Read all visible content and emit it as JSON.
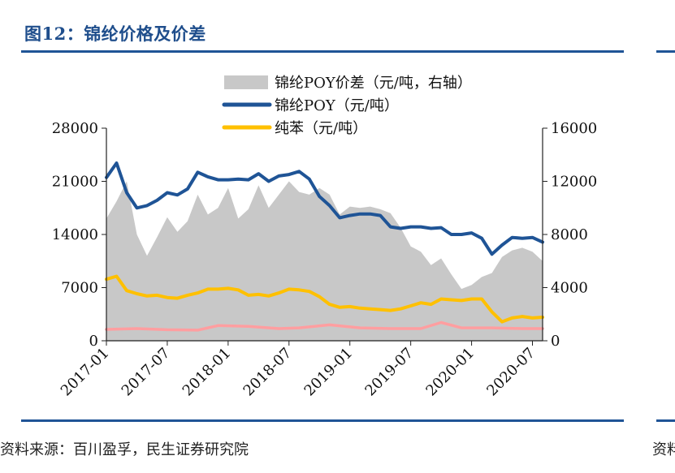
{
  "figure": {
    "title": "图12：锦纶价格及价差",
    "source": "资料来源：百川盈孚，民生证券研究院",
    "source_fragment": "资料"
  },
  "chart_data": {
    "type": "line",
    "x_start": "2017-01",
    "x_end": "2020-08",
    "x_tick_labels": [
      "2017-01",
      "2017-07",
      "2018-01",
      "2018-07",
      "2019-01",
      "2019-07",
      "2020-01",
      "2020-07"
    ],
    "y_left": {
      "lim": [
        0,
        28000
      ],
      "ticks": [
        0,
        7000,
        14000,
        21000,
        28000
      ]
    },
    "y_right": {
      "lim": [
        0,
        16000
      ],
      "ticks": [
        0,
        4000,
        8000,
        12000,
        16000
      ]
    },
    "legend_position": "top-center",
    "series": [
      {
        "name": "锦纶POY价差（元/吨，右轴）",
        "kind": "area",
        "axis": "right",
        "color": "#c8c8c8",
        "x": [
          "2017-01",
          "2017-02",
          "2017-03",
          "2017-04",
          "2017-05",
          "2017-06",
          "2017-07",
          "2017-08",
          "2017-09",
          "2017-10",
          "2017-11",
          "2017-12",
          "2018-01",
          "2018-02",
          "2018-03",
          "2018-04",
          "2018-05",
          "2018-06",
          "2018-07",
          "2018-08",
          "2018-09",
          "2018-10",
          "2018-11",
          "2018-12",
          "2019-01",
          "2019-02",
          "2019-03",
          "2019-04",
          "2019-05",
          "2019-06",
          "2019-07",
          "2019-08",
          "2019-09",
          "2019-10",
          "2019-11",
          "2019-12",
          "2020-01",
          "2020-02",
          "2020-03",
          "2020-04",
          "2020-05",
          "2020-06",
          "2020-07",
          "2020-08"
        ],
        "values": [
          9200,
          10500,
          12000,
          8000,
          6400,
          7800,
          9300,
          8200,
          9000,
          11000,
          9500,
          10000,
          11500,
          9200,
          9900,
          11700,
          10000,
          11000,
          12000,
          11200,
          11000,
          11500,
          11000,
          9500,
          10100,
          10000,
          10100,
          9900,
          9600,
          8500,
          7100,
          6700,
          5700,
          6200,
          5000,
          3900,
          4200,
          4800,
          5100,
          6300,
          6800,
          7000,
          6700,
          6000
        ]
      },
      {
        "name": "锦纶POY（元/吨）",
        "kind": "line",
        "axis": "left",
        "color": "#1f5496",
        "x": [
          "2017-01",
          "2017-02",
          "2017-03",
          "2017-04",
          "2017-05",
          "2017-06",
          "2017-07",
          "2017-08",
          "2017-09",
          "2017-10",
          "2017-11",
          "2017-12",
          "2018-01",
          "2018-02",
          "2018-03",
          "2018-04",
          "2018-05",
          "2018-06",
          "2018-07",
          "2018-08",
          "2018-09",
          "2018-10",
          "2018-11",
          "2018-12",
          "2019-01",
          "2019-02",
          "2019-03",
          "2019-04",
          "2019-05",
          "2019-06",
          "2019-07",
          "2019-08",
          "2019-09",
          "2019-10",
          "2019-11",
          "2019-12",
          "2020-01",
          "2020-02",
          "2020-03",
          "2020-04",
          "2020-05",
          "2020-06",
          "2020-07",
          "2020-08"
        ],
        "values": [
          21500,
          23400,
          19500,
          17500,
          17800,
          18500,
          19500,
          19200,
          20000,
          22200,
          21600,
          21200,
          21200,
          21300,
          21200,
          22000,
          21000,
          21700,
          21900,
          22300,
          21300,
          19000,
          17800,
          16200,
          16500,
          16700,
          16700,
          16500,
          15000,
          14800,
          15000,
          15000,
          14800,
          14900,
          14000,
          14000,
          14200,
          13500,
          11400,
          12600,
          13600,
          13500,
          13600,
          13000
        ]
      },
      {
        "name": "纯苯（元/吨）",
        "kind": "line",
        "axis": "left",
        "color": "#ffc000",
        "x": [
          "2017-01",
          "2017-02",
          "2017-03",
          "2017-04",
          "2017-05",
          "2017-06",
          "2017-07",
          "2017-08",
          "2017-09",
          "2017-10",
          "2017-11",
          "2017-12",
          "2018-01",
          "2018-02",
          "2018-03",
          "2018-04",
          "2018-05",
          "2018-06",
          "2018-07",
          "2018-08",
          "2018-09",
          "2018-10",
          "2018-11",
          "2018-12",
          "2019-01",
          "2019-02",
          "2019-03",
          "2019-04",
          "2019-05",
          "2019-06",
          "2019-07",
          "2019-08",
          "2019-09",
          "2019-10",
          "2019-11",
          "2019-12",
          "2020-01",
          "2020-02",
          "2020-03",
          "2020-04",
          "2020-05",
          "2020-06",
          "2020-07",
          "2020-08"
        ],
        "values": [
          8100,
          8500,
          6600,
          6200,
          5900,
          6000,
          5700,
          5600,
          6000,
          6300,
          6800,
          6800,
          6900,
          6700,
          6000,
          6100,
          5900,
          6300,
          6800,
          6700,
          6500,
          5800,
          4800,
          4400,
          4500,
          4300,
          4200,
          4100,
          4000,
          4200,
          4600,
          5000,
          4800,
          5500,
          5400,
          5300,
          5500,
          5500,
          3800,
          2500,
          3000,
          3200,
          3000,
          3100
        ]
      },
      {
        "name": "",
        "kind": "line",
        "axis": "left",
        "color": "#ff9ea0",
        "x": [
          "2017-01",
          "2017-04",
          "2017-07",
          "2017-10",
          "2017-12",
          "2018-03",
          "2018-06",
          "2018-08",
          "2018-11",
          "2019-02",
          "2019-05",
          "2019-08",
          "2019-10",
          "2019-12",
          "2020-03",
          "2020-06",
          "2020-08"
        ],
        "values": [
          1500,
          1600,
          1450,
          1400,
          2000,
          1900,
          1600,
          1700,
          2100,
          1700,
          1600,
          1600,
          2400,
          1700,
          1700,
          1600,
          1600
        ]
      }
    ]
  }
}
